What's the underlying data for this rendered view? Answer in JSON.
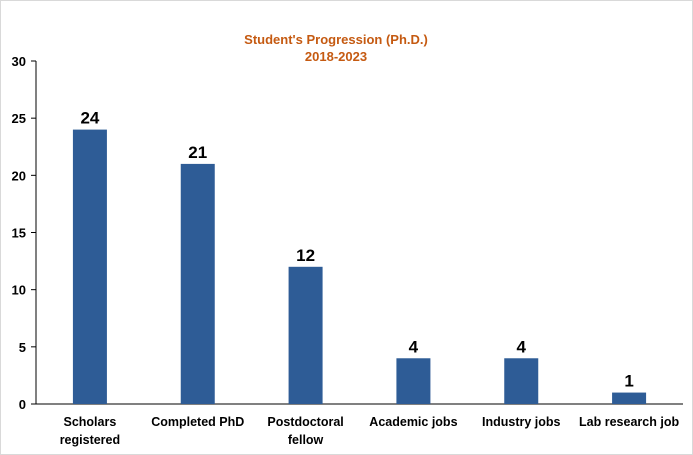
{
  "chart_data": {
    "type": "bar",
    "title": "Student's Progression (Ph.D.)",
    "subtitle": "2018-2023",
    "categories": [
      [
        "Scholars",
        "registered"
      ],
      [
        "Completed PhD"
      ],
      [
        "Postdoctoral",
        "fellow"
      ],
      [
        "Academic jobs"
      ],
      [
        "Industry jobs"
      ],
      [
        "Lab research job"
      ]
    ],
    "values": [
      24,
      21,
      12,
      4,
      4,
      1
    ],
    "data_labels": [
      "24",
      "21",
      "12",
      "4",
      "4",
      "1"
    ],
    "y_ticks": [
      "0",
      "5",
      "10",
      "15",
      "20",
      "25",
      "30"
    ],
    "ylim": [
      0,
      30
    ],
    "xlabel": "",
    "ylabel": "",
    "grid": false,
    "legend": "none",
    "colors": {
      "bar": "#2e5c96",
      "title": "#c55a11",
      "axis": "#000000"
    }
  }
}
